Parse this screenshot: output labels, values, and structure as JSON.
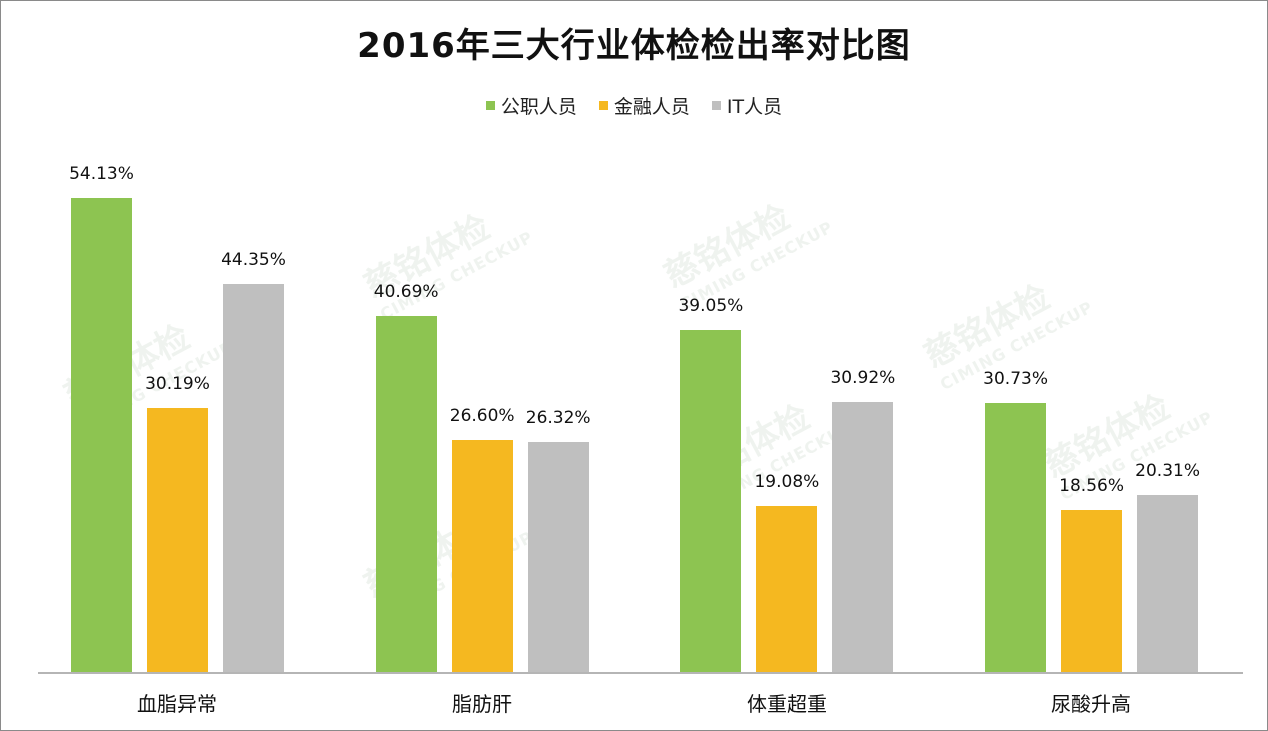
{
  "title": "2016年三大行业体检检出率对比图",
  "legend": [
    {
      "label": "公职人员",
      "color": "#8DC451"
    },
    {
      "label": "金融人员",
      "color": "#F5B820"
    },
    {
      "label": "IT人员",
      "color": "#BFBFBF"
    }
  ],
  "watermark": {
    "cn": "慈铭体检",
    "en": "CIMING CHECKUP"
  },
  "chart_data": {
    "type": "bar",
    "title": "2016年三大行业体检检出率对比图",
    "xlabel": "",
    "ylabel": "",
    "categories": [
      "血脂异常",
      "脂肪肝",
      "体重超重",
      "尿酸升高"
    ],
    "series": [
      {
        "name": "公职人员",
        "color": "#8DC451",
        "values": [
          54.13,
          40.69,
          39.05,
          30.73
        ],
        "labels": [
          "54.13%",
          "40.69%",
          "39.05%",
          "30.73%"
        ]
      },
      {
        "name": "金融人员",
        "color": "#F5B820",
        "values": [
          30.19,
          26.6,
          19.08,
          18.56
        ],
        "labels": [
          "30.19%",
          "26.60%",
          "19.08%",
          "18.56%"
        ]
      },
      {
        "name": "IT人员",
        "color": "#BFBFBF",
        "values": [
          44.35,
          26.32,
          30.92,
          20.31
        ],
        "labels": [
          "44.35%",
          "26.32%",
          "30.92%",
          "20.31%"
        ]
      }
    ],
    "legend_position": "top",
    "grid": false,
    "data_labels": true,
    "y_axis_visible": false,
    "ylim": [
      0,
      55
    ]
  }
}
